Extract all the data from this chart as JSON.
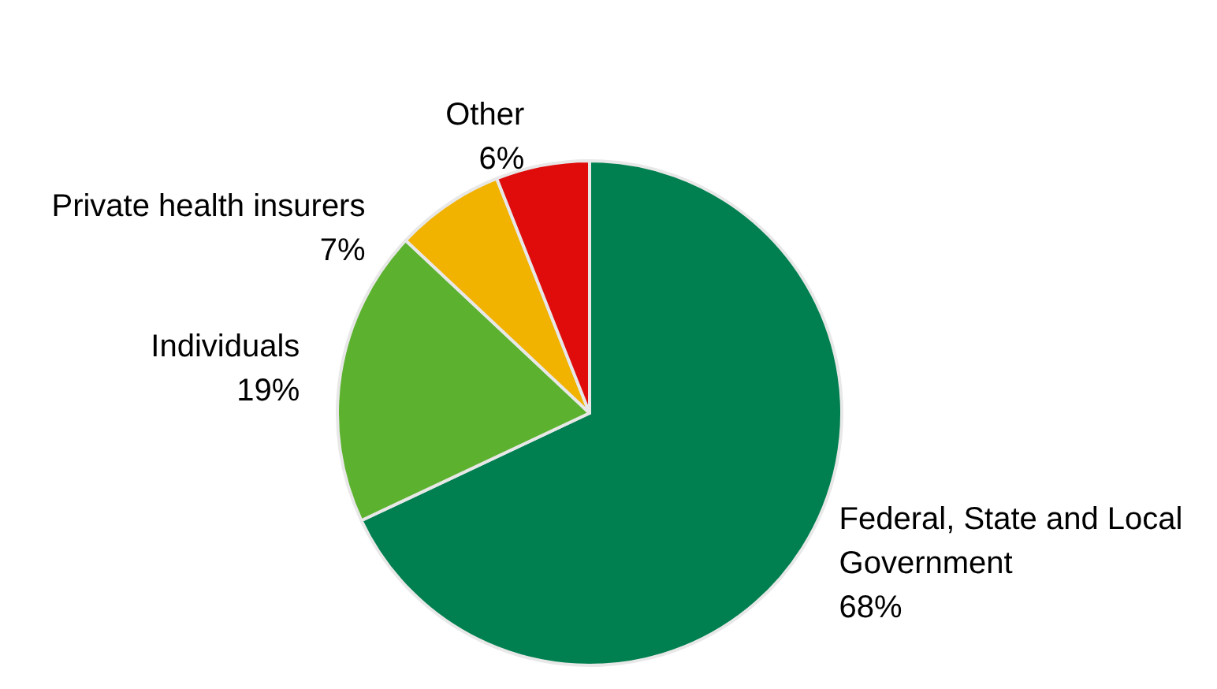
{
  "chart_data": {
    "type": "pie",
    "categories": [
      "Federal, State and Local Government",
      "Individuals",
      "Private health insurers",
      "Other"
    ],
    "values": [
      68,
      19,
      7,
      6
    ],
    "value_labels": [
      "68%",
      "19%",
      "7%",
      "6%"
    ],
    "colors": [
      "#008050",
      "#5cb22e",
      "#f2b200",
      "#e00b0b"
    ]
  }
}
